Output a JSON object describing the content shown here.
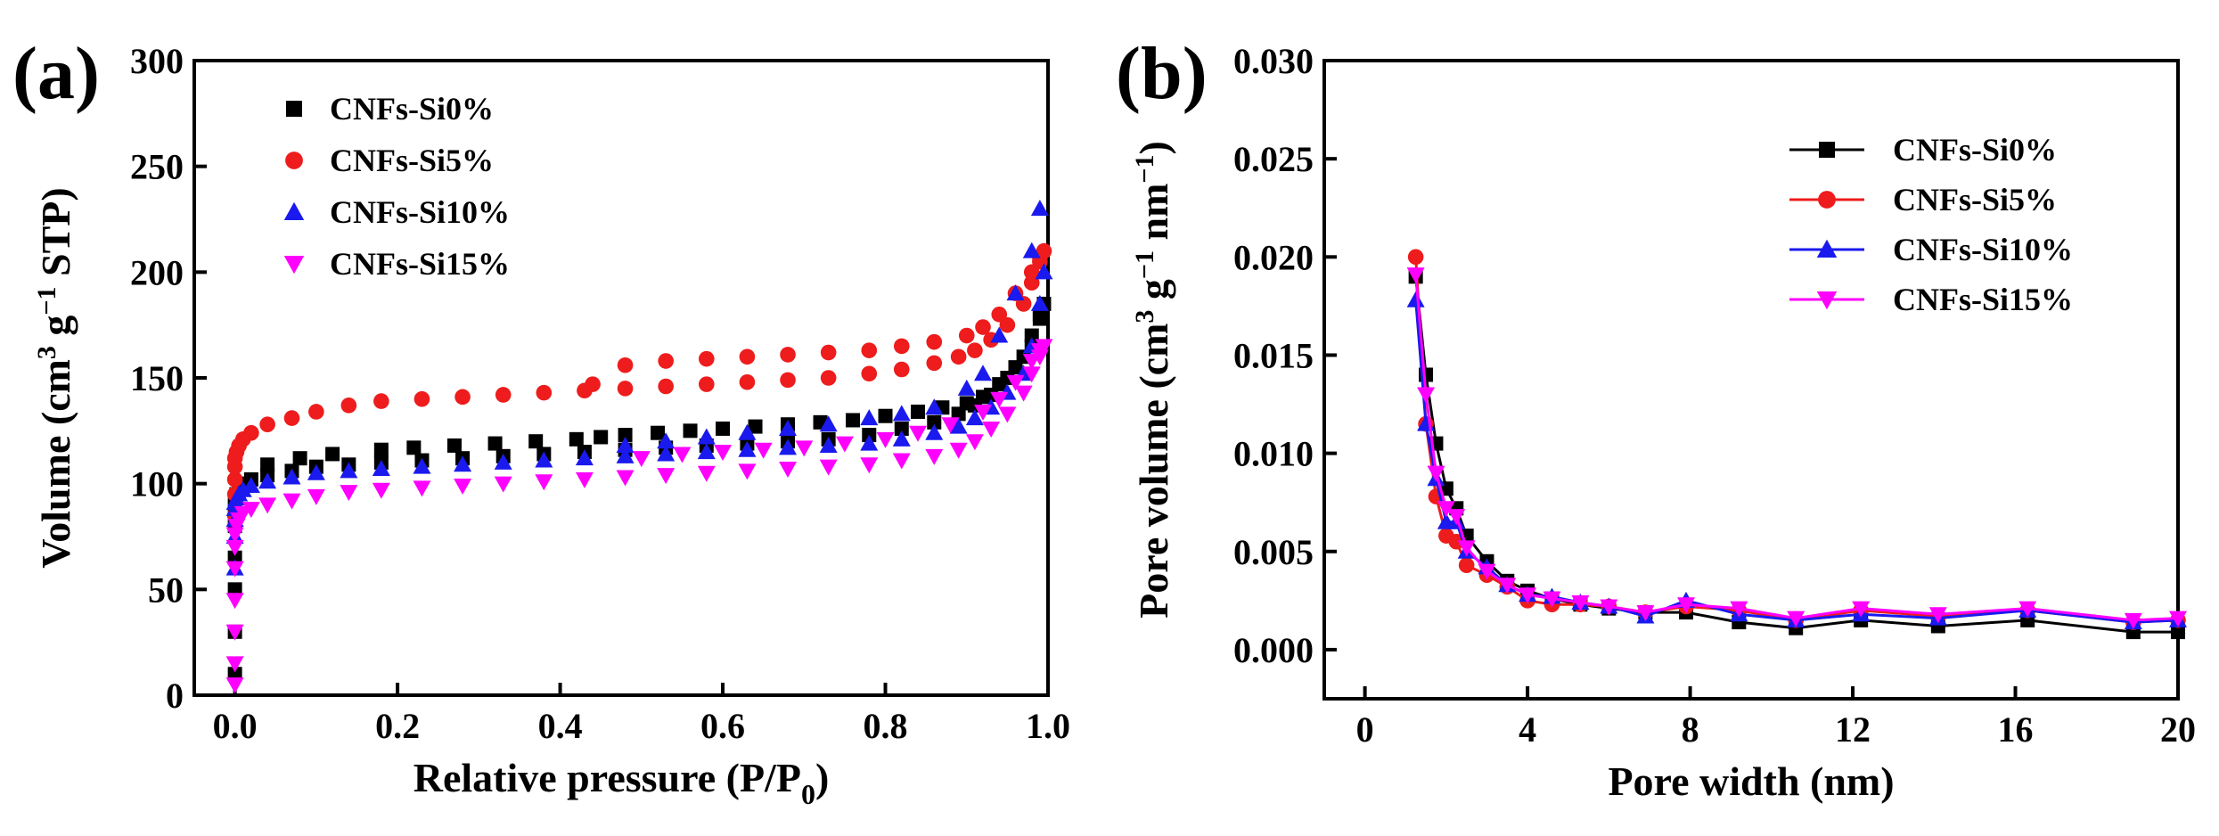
{
  "chart_data": [
    {
      "panel": "(a)",
      "type": "scatter",
      "xlabel": "Relative pressure (P/P0)",
      "ylabel": "Volume (cm3 g−1 STP)",
      "xlim": [
        -0.05,
        1.0
      ],
      "ylim": [
        0,
        300
      ],
      "xticks": [
        "0.0",
        "0.2",
        "0.4",
        "0.6",
        "0.8",
        "1.0"
      ],
      "yticks": [
        "0",
        "50",
        "100",
        "150",
        "200",
        "250",
        "300"
      ],
      "legend_position": "top-left",
      "grid": false,
      "series": [
        {
          "name": "CNFs-Si0%",
          "color": "#000000",
          "marker": "square",
          "x": [
            0.0,
            0.0,
            0.0,
            0.0,
            0.0,
            0.0,
            0.002,
            0.005,
            0.01,
            0.02,
            0.04,
            0.07,
            0.1,
            0.14,
            0.18,
            0.23,
            0.28,
            0.33,
            0.38,
            0.43,
            0.48,
            0.53,
            0.58,
            0.63,
            0.68,
            0.73,
            0.78,
            0.82,
            0.86,
            0.89,
            0.91,
            0.93,
            0.95,
            0.97,
            0.98,
            0.99,
            0.995,
            0.99,
            0.98,
            0.96,
            0.94,
            0.92,
            0.9,
            0.87,
            0.84,
            0.8,
            0.76,
            0.72,
            0.68,
            0.64,
            0.6,
            0.56,
            0.52,
            0.48,
            0.45,
            0.42,
            0.37,
            0.32,
            0.27,
            0.22,
            0.18,
            0.12,
            0.08,
            0.04
          ],
          "y": [
            10,
            30,
            50,
            65,
            80,
            90,
            95,
            98,
            100,
            102,
            104,
            106,
            108,
            109,
            110,
            111,
            112,
            113,
            114,
            115,
            116,
            117,
            118,
            119,
            120,
            121,
            123,
            126,
            129,
            133,
            137,
            142,
            150,
            160,
            170,
            180,
            185,
            178,
            165,
            155,
            147,
            141,
            138,
            136,
            134,
            132,
            130,
            129,
            128,
            127,
            126,
            125,
            124,
            123,
            122,
            121,
            120,
            119,
            118,
            117,
            116,
            114,
            112,
            109
          ]
        },
        {
          "name": "CNFs-Si5%",
          "color": "#ee1c1c",
          "marker": "circle",
          "x": [
            0.0,
            0.0,
            0.0,
            0.0,
            0.0,
            0.002,
            0.005,
            0.01,
            0.02,
            0.04,
            0.07,
            0.1,
            0.14,
            0.18,
            0.23,
            0.28,
            0.33,
            0.38,
            0.43,
            0.48,
            0.53,
            0.58,
            0.63,
            0.68,
            0.73,
            0.78,
            0.82,
            0.86,
            0.89,
            0.91,
            0.93,
            0.95,
            0.97,
            0.98,
            0.99,
            0.995,
            0.99,
            0.98,
            0.96,
            0.94,
            0.92,
            0.9,
            0.86,
            0.82,
            0.78,
            0.73,
            0.68,
            0.63,
            0.58,
            0.53,
            0.48,
            0.44
          ],
          "y": [
            85,
            95,
            102,
            108,
            112,
            115,
            118,
            121,
            124,
            128,
            131,
            134,
            137,
            139,
            140,
            141,
            142,
            143,
            144,
            145,
            146,
            147,
            148,
            149,
            150,
            152,
            154,
            157,
            160,
            163,
            168,
            175,
            185,
            195,
            205,
            210,
            207,
            200,
            190,
            180,
            174,
            170,
            167,
            165,
            163,
            162,
            161,
            160,
            159,
            158,
            156,
            147
          ]
        },
        {
          "name": "CNFs-Si10%",
          "color": "#1a1aee",
          "marker": "triangle-up",
          "x": [
            0.0,
            0.0,
            0.0,
            0.0,
            0.0,
            0.002,
            0.005,
            0.01,
            0.02,
            0.04,
            0.07,
            0.1,
            0.14,
            0.18,
            0.23,
            0.28,
            0.33,
            0.38,
            0.43,
            0.48,
            0.53,
            0.58,
            0.63,
            0.68,
            0.73,
            0.78,
            0.82,
            0.86,
            0.89,
            0.91,
            0.93,
            0.95,
            0.97,
            0.98,
            0.99,
            0.995,
            0.99,
            0.98,
            0.96,
            0.94,
            0.92,
            0.9,
            0.86,
            0.82,
            0.78,
            0.73,
            0.68,
            0.63,
            0.58,
            0.53,
            0.48
          ],
          "y": [
            60,
            75,
            83,
            88,
            91,
            93,
            95,
            97,
            99,
            101,
            103,
            105,
            106,
            107,
            108,
            109,
            110,
            111,
            112,
            113,
            114,
            115,
            116,
            117,
            118,
            119,
            121,
            124,
            127,
            131,
            136,
            143,
            152,
            165,
            185,
            200,
            230,
            210,
            190,
            170,
            152,
            145,
            136,
            133,
            131,
            128,
            126,
            124,
            122,
            120,
            118
          ]
        },
        {
          "name": "CNFs-Si15%",
          "color": "#ff00ff",
          "marker": "triangle-down",
          "x": [
            0.0,
            0.0,
            0.0,
            0.0,
            0.0,
            0.0,
            0.0,
            0.002,
            0.005,
            0.01,
            0.02,
            0.04,
            0.07,
            0.1,
            0.14,
            0.18,
            0.23,
            0.28,
            0.33,
            0.38,
            0.43,
            0.48,
            0.53,
            0.58,
            0.63,
            0.68,
            0.73,
            0.78,
            0.82,
            0.86,
            0.89,
            0.91,
            0.93,
            0.95,
            0.97,
            0.98,
            0.99,
            0.995,
            0.99,
            0.98,
            0.96,
            0.94,
            0.92,
            0.88,
            0.84,
            0.8,
            0.75,
            0.7,
            0.65,
            0.6,
            0.55,
            0.5
          ],
          "y": [
            5,
            15,
            30,
            45,
            60,
            70,
            76,
            80,
            83,
            86,
            88,
            90,
            92,
            94,
            96,
            97,
            98,
            99,
            100,
            101,
            102,
            103,
            104,
            105,
            106,
            107,
            108,
            109,
            111,
            113,
            116,
            120,
            126,
            133,
            143,
            152,
            160,
            165,
            163,
            158,
            148,
            140,
            134,
            128,
            124,
            121,
            119,
            117,
            116,
            115,
            114,
            112
          ]
        }
      ]
    },
    {
      "panel": "(b)",
      "type": "line",
      "xlabel": "Pore width (nm)",
      "ylabel": "Pore volume (cm3 g−1 nm−1)",
      "xlim": [
        -1,
        20
      ],
      "ylim": [
        -0.0025,
        0.03
      ],
      "xticks": [
        "0",
        "4",
        "8",
        "12",
        "16",
        "20"
      ],
      "yticks": [
        "0.000",
        "0.005",
        "0.010",
        "0.015",
        "0.020",
        "0.025",
        "0.030"
      ],
      "legend_position": "top-right",
      "grid": false,
      "series": [
        {
          "name": "CNFs-Si0%",
          "color": "#000000",
          "marker": "square",
          "x": [
            1.25,
            1.5,
            1.75,
            2.0,
            2.25,
            2.5,
            3.0,
            3.5,
            4.0,
            4.6,
            5.3,
            6.0,
            6.9,
            7.9,
            9.2,
            10.6,
            12.2,
            14.1,
            16.3,
            18.9,
            20.0
          ],
          "y": [
            0.019,
            0.014,
            0.0105,
            0.0082,
            0.0072,
            0.0058,
            0.0045,
            0.0035,
            0.003,
            0.0026,
            0.0023,
            0.0021,
            0.0019,
            0.0019,
            0.0014,
            0.0011,
            0.0015,
            0.0012,
            0.0015,
            0.0009,
            0.0009
          ]
        },
        {
          "name": "CNFs-Si5%",
          "color": "#ee1c1c",
          "marker": "circle",
          "x": [
            1.25,
            1.5,
            1.75,
            2.0,
            2.25,
            2.5,
            3.0,
            3.5,
            4.0,
            4.6,
            5.3,
            6.0,
            6.9,
            7.9,
            9.2,
            10.6,
            12.2,
            14.1,
            16.3,
            18.9,
            20.0
          ],
          "y": [
            0.02,
            0.0115,
            0.0078,
            0.0058,
            0.0055,
            0.0043,
            0.0038,
            0.0032,
            0.0025,
            0.0023,
            0.0023,
            0.0022,
            0.0019,
            0.0022,
            0.002,
            0.0015,
            0.002,
            0.0017,
            0.002,
            0.0014,
            0.0015
          ]
        },
        {
          "name": "CNFs-Si10%",
          "color": "#1a1aee",
          "marker": "triangle-up",
          "x": [
            1.25,
            1.5,
            1.75,
            2.0,
            2.25,
            2.5,
            3.0,
            3.5,
            4.0,
            4.6,
            5.3,
            6.0,
            6.9,
            7.9,
            9.2,
            10.6,
            12.2,
            14.1,
            16.3,
            18.9,
            20.0
          ],
          "y": [
            0.0178,
            0.0115,
            0.0087,
            0.0065,
            0.0065,
            0.005,
            0.0042,
            0.0033,
            0.0028,
            0.0027,
            0.0024,
            0.0022,
            0.0017,
            0.0025,
            0.0018,
            0.0015,
            0.0018,
            0.0016,
            0.002,
            0.0014,
            0.0015
          ]
        },
        {
          "name": "CNFs-Si15%",
          "color": "#ff00ff",
          "marker": "triangle-down",
          "x": [
            1.25,
            1.5,
            1.75,
            2.0,
            2.25,
            2.5,
            3.0,
            3.5,
            4.0,
            4.6,
            5.3,
            6.0,
            6.9,
            7.9,
            9.2,
            10.6,
            12.2,
            14.1,
            16.3,
            18.9,
            20.0
          ],
          "y": [
            0.0191,
            0.013,
            0.009,
            0.0072,
            0.0068,
            0.0052,
            0.004,
            0.0033,
            0.0028,
            0.0026,
            0.0024,
            0.0022,
            0.0019,
            0.0023,
            0.0021,
            0.0016,
            0.0021,
            0.0018,
            0.0021,
            0.0015,
            0.0016
          ]
        }
      ]
    }
  ]
}
